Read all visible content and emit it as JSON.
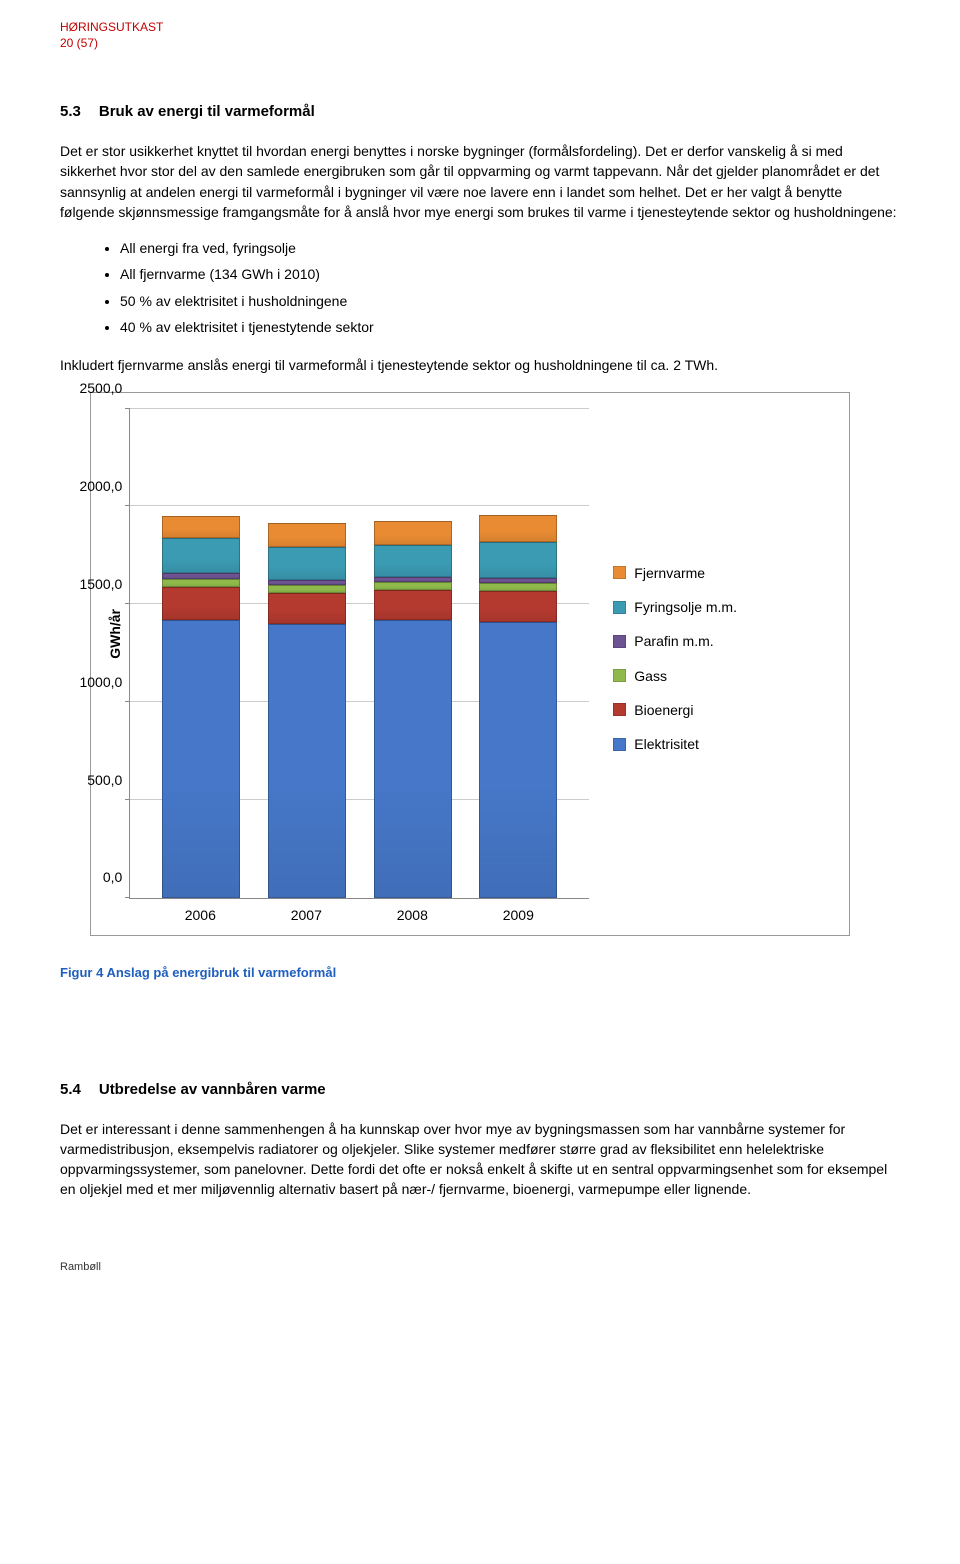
{
  "header": {
    "mark_line1": "HØRINGSUTKAST",
    "mark_line2": "20 (57)"
  },
  "sec53": {
    "num": "5.3",
    "title": "Bruk av energi til varmeformål",
    "p1": "Det er stor usikkerhet knyttet til hvordan energi benyttes i norske bygninger (formålsfordeling). Det er derfor vanskelig å si med sikkerhet hvor stor del av den samlede energibruken som går til oppvarming og varmt tappevann. Når det gjelder planområdet er det sannsynlig at andelen energi til varmeformål i bygninger vil være noe lavere enn i landet som helhet. Det er her valgt å benytte følgende skjønnsmessige framgangsmåte for å anslå hvor mye energi som brukes til varme i tjenesteytende sektor og husholdningene:",
    "bullets": [
      "All energi fra ved, fyringsolje",
      "All fjernvarme (134 GWh i 2010)",
      "50 % av elektrisitet i husholdningene",
      "40 % av elektrisitet i tjenestytende sektor"
    ],
    "p2": "Inkludert fjernvarme anslås energi til varmeformål i tjenesteytende sektor og husholdningene til ca. 2 TWh."
  },
  "chart": {
    "type": "stacked-bar",
    "y_axis_label": "GWh/år",
    "y_ticks": [
      "0,0",
      "500,0",
      "1000,0",
      "1500,0",
      "2000,0",
      "2500,0"
    ],
    "ymax": 2500,
    "categories": [
      "2006",
      "2007",
      "2008",
      "2009"
    ],
    "series": [
      {
        "name": "Elektrisitet",
        "color": "#4677c8",
        "values": [
          1420,
          1400,
          1420,
          1410
        ]
      },
      {
        "name": "Bioenergi",
        "color": "#b43a2f",
        "values": [
          170,
          160,
          155,
          160
        ]
      },
      {
        "name": "Gass",
        "color": "#8fb94a",
        "values": [
          40,
          40,
          40,
          40
        ]
      },
      {
        "name": "Parafin m.m.",
        "color": "#6e5393",
        "values": [
          30,
          25,
          25,
          25
        ]
      },
      {
        "name": "Fyringsolje m.m.",
        "color": "#3b9bb3",
        "values": [
          180,
          170,
          165,
          185
        ]
      },
      {
        "name": "Fjernvarme",
        "color": "#e98b33",
        "values": [
          110,
          120,
          120,
          135
        ]
      }
    ],
    "legend_order": [
      "Fjernvarme",
      "Fyringsolje m.m.",
      "Parafin m.m.",
      "Gass",
      "Bioenergi",
      "Elektrisitet"
    ],
    "background_color": "#ffffff",
    "grid_color": "#cccccc",
    "label_fontsize": 14
  },
  "fig_caption": "Figur 4 Anslag på energibruk til varmeformål",
  "sec54": {
    "num": "5.4",
    "title": "Utbredelse av vannbåren varme",
    "p1": "Det er interessant i denne sammenhengen å ha kunnskap over hvor mye av bygningsmassen som har vannbårne systemer for varmedistribusjon, eksempelvis radiatorer og oljekjeler. Slike systemer medfører større grad av fleksibilitet enn helelektriske oppvarmingssystemer, som panelovner. Dette fordi det ofte er nokså enkelt å skifte ut en sentral oppvarmingsenhet som for eksempel en oljekjel med et mer miljøvennlig alternativ basert på nær-/ fjernvarme, bioenergi, varmepumpe eller lignende."
  },
  "footer": "Rambøll"
}
